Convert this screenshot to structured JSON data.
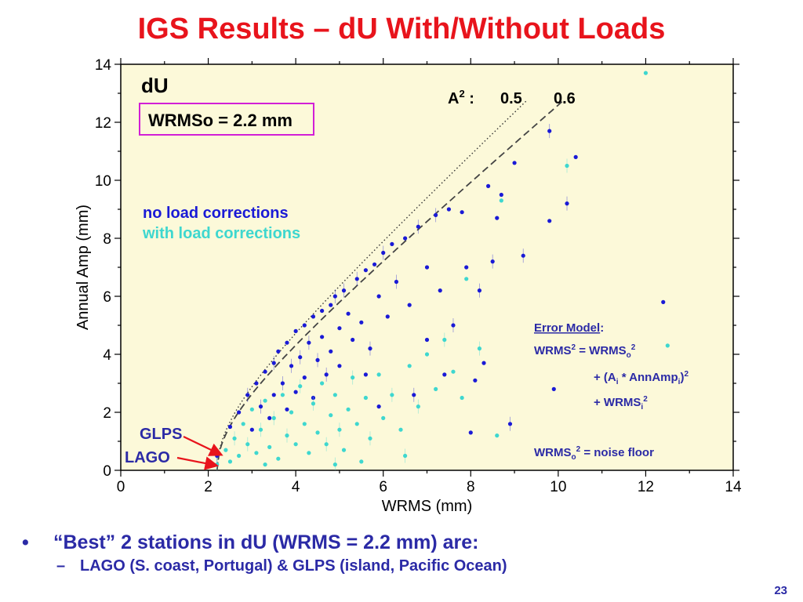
{
  "slide": {
    "title": "IGS Results – dU With/Without Loads",
    "page_number": "23"
  },
  "colors": {
    "title": "#e8141c",
    "text_blue": "#2b2aa6",
    "plot_bg": "#fcf9d9",
    "no_load": "#1a1ad6",
    "with_load": "#3ed7cf",
    "box": "#d21fd6",
    "arrow": "#e8141c"
  },
  "bullets": [
    {
      "text": "“Best” 2 stations in dU (WRMS = 2.2 mm)  are:",
      "sub": [
        "LAGO (S. coast, Portugal) & GLPS (island, Pacific Ocean)"
      ]
    }
  ],
  "chart_data": {
    "type": "scatter",
    "title": "dU",
    "xlabel": "WRMS (mm)",
    "ylabel": "Annual Amp (mm)",
    "xlim": [
      0,
      14
    ],
    "ylim": [
      0,
      14
    ],
    "xticks": [
      "0",
      "2",
      "4",
      "6",
      "8",
      "10",
      "12",
      "14"
    ],
    "yticks": [
      "0",
      "2",
      "4",
      "6",
      "8",
      "10",
      "12",
      "14"
    ],
    "grid": false,
    "wrms_floor_label": "WRMSo = 2.2 mm",
    "legend": {
      "placement": "left",
      "entries": [
        "no load corrections",
        "with load corrections"
      ]
    },
    "curves": [
      {
        "label": "0.5",
        "a2": 0.5,
        "style": "dotted",
        "wrms0": 2.2
      },
      {
        "label": "0.6",
        "a2": 0.6,
        "style": "dashed",
        "wrms0": 2.2
      }
    ],
    "a2_label": {
      "prefix": "A",
      "sup": "2",
      "suffix": " :"
    },
    "series": [
      {
        "name": "no load corrections",
        "points": [
          [
            2.2,
            0.5
          ],
          [
            2.5,
            1.5
          ],
          [
            2.7,
            2.0
          ],
          [
            2.9,
            2.6
          ],
          [
            3.0,
            1.4
          ],
          [
            3.1,
            3.0
          ],
          [
            3.2,
            2.2
          ],
          [
            3.3,
            3.4
          ],
          [
            3.4,
            1.8
          ],
          [
            3.5,
            3.7
          ],
          [
            3.5,
            2.6
          ],
          [
            3.6,
            4.1
          ],
          [
            3.7,
            3.0
          ],
          [
            3.8,
            4.4
          ],
          [
            3.8,
            2.1
          ],
          [
            3.9,
            3.6
          ],
          [
            4.0,
            4.8
          ],
          [
            4.0,
            2.7
          ],
          [
            4.1,
            3.9
          ],
          [
            4.2,
            5.0
          ],
          [
            4.2,
            3.2
          ],
          [
            4.3,
            4.4
          ],
          [
            4.4,
            5.3
          ],
          [
            4.4,
            2.5
          ],
          [
            4.5,
            3.8
          ],
          [
            4.6,
            5.5
          ],
          [
            4.6,
            4.6
          ],
          [
            4.7,
            3.3
          ],
          [
            4.8,
            5.7
          ],
          [
            4.8,
            4.1
          ],
          [
            4.9,
            6.0
          ],
          [
            5.0,
            4.9
          ],
          [
            5.0,
            3.6
          ],
          [
            5.1,
            6.2
          ],
          [
            5.2,
            5.4
          ],
          [
            5.3,
            4.5
          ],
          [
            5.4,
            6.6
          ],
          [
            5.5,
            5.1
          ],
          [
            5.6,
            6.9
          ],
          [
            5.7,
            4.2
          ],
          [
            5.8,
            7.1
          ],
          [
            5.9,
            6.0
          ],
          [
            6.0,
            7.5
          ],
          [
            6.1,
            5.3
          ],
          [
            6.2,
            7.8
          ],
          [
            6.3,
            6.5
          ],
          [
            6.5,
            8.0
          ],
          [
            6.6,
            5.7
          ],
          [
            6.8,
            8.4
          ],
          [
            7.0,
            7.0
          ],
          [
            7.0,
            4.5
          ],
          [
            7.2,
            8.8
          ],
          [
            7.3,
            6.2
          ],
          [
            7.5,
            9.0
          ],
          [
            7.6,
            5.0
          ],
          [
            7.8,
            8.9
          ],
          [
            7.9,
            7.0
          ],
          [
            8.2,
            6.2
          ],
          [
            8.3,
            3.7
          ],
          [
            8.4,
            9.8
          ],
          [
            8.5,
            7.2
          ],
          [
            8.7,
            9.5
          ],
          [
            9.0,
            10.6
          ],
          [
            9.8,
            11.7
          ],
          [
            9.8,
            8.6
          ],
          [
            10.4,
            10.8
          ],
          [
            10.2,
            9.2
          ],
          [
            9.9,
            2.8
          ],
          [
            8.0,
            1.3
          ],
          [
            8.9,
            1.6
          ],
          [
            12.4,
            5.8
          ],
          [
            8.1,
            3.1
          ],
          [
            9.2,
            7.4
          ],
          [
            8.6,
            8.7
          ],
          [
            7.4,
            3.3
          ],
          [
            6.7,
            2.6
          ],
          [
            5.9,
            2.2
          ],
          [
            5.6,
            3.3
          ]
        ]
      },
      {
        "name": "with load corrections",
        "points": [
          [
            2.2,
            0.2
          ],
          [
            2.4,
            0.7
          ],
          [
            2.5,
            0.3
          ],
          [
            2.6,
            1.1
          ],
          [
            2.7,
            0.5
          ],
          [
            2.8,
            1.6
          ],
          [
            2.9,
            0.9
          ],
          [
            3.0,
            2.1
          ],
          [
            3.1,
            0.6
          ],
          [
            3.2,
            1.4
          ],
          [
            3.3,
            2.4
          ],
          [
            3.4,
            0.8
          ],
          [
            3.5,
            1.8
          ],
          [
            3.6,
            0.4
          ],
          [
            3.7,
            2.6
          ],
          [
            3.8,
            1.2
          ],
          [
            3.9,
            2.0
          ],
          [
            4.0,
            0.9
          ],
          [
            4.1,
            2.9
          ],
          [
            4.2,
            1.6
          ],
          [
            4.3,
            0.6
          ],
          [
            4.4,
            2.3
          ],
          [
            4.5,
            1.3
          ],
          [
            4.6,
            3.0
          ],
          [
            4.7,
            0.9
          ],
          [
            4.8,
            1.9
          ],
          [
            4.9,
            2.6
          ],
          [
            5.0,
            1.4
          ],
          [
            5.1,
            0.7
          ],
          [
            5.2,
            2.1
          ],
          [
            5.3,
            3.2
          ],
          [
            5.4,
            1.6
          ],
          [
            5.6,
            2.5
          ],
          [
            5.7,
            1.1
          ],
          [
            5.9,
            3.3
          ],
          [
            6.0,
            1.8
          ],
          [
            6.2,
            2.6
          ],
          [
            6.4,
            1.4
          ],
          [
            6.6,
            3.6
          ],
          [
            6.8,
            2.2
          ],
          [
            7.0,
            4.0
          ],
          [
            7.2,
            2.8
          ],
          [
            7.4,
            4.5
          ],
          [
            7.6,
            3.4
          ],
          [
            7.8,
            2.5
          ],
          [
            8.2,
            4.2
          ],
          [
            8.6,
            1.2
          ],
          [
            12.0,
            13.7
          ],
          [
            10.2,
            10.5
          ],
          [
            8.7,
            9.3
          ],
          [
            7.9,
            6.6
          ],
          [
            6.5,
            0.5
          ],
          [
            12.5,
            4.3
          ],
          [
            5.5,
            0.3
          ],
          [
            4.9,
            0.2
          ],
          [
            3.3,
            0.2
          ]
        ]
      }
    ],
    "error_model": {
      "heading": "Error Model",
      "heading_suffix": ":",
      "line1": {
        "a": "WRMS",
        "sup1": "2",
        "b": " = WRMS",
        "sub1": "o",
        "sup2": "2"
      },
      "line2": {
        "a": "+  (A",
        "sub1": "i",
        "b": " * AnnAmp",
        "sub2": "i",
        "c": ")",
        "sup1": "2"
      },
      "line3": {
        "a": "+  WRMS",
        "sub1": "i",
        "sup1": "2"
      },
      "line4": {
        "a": "WRMS",
        "sub1": "o",
        "sup1": "2",
        "b": " = noise floor"
      }
    },
    "stations": [
      {
        "name": "GLPS",
        "wrms": 2.2,
        "amp": 0.5
      },
      {
        "name": "LAGO",
        "wrms": 2.2,
        "amp": 0.2
      }
    ]
  }
}
